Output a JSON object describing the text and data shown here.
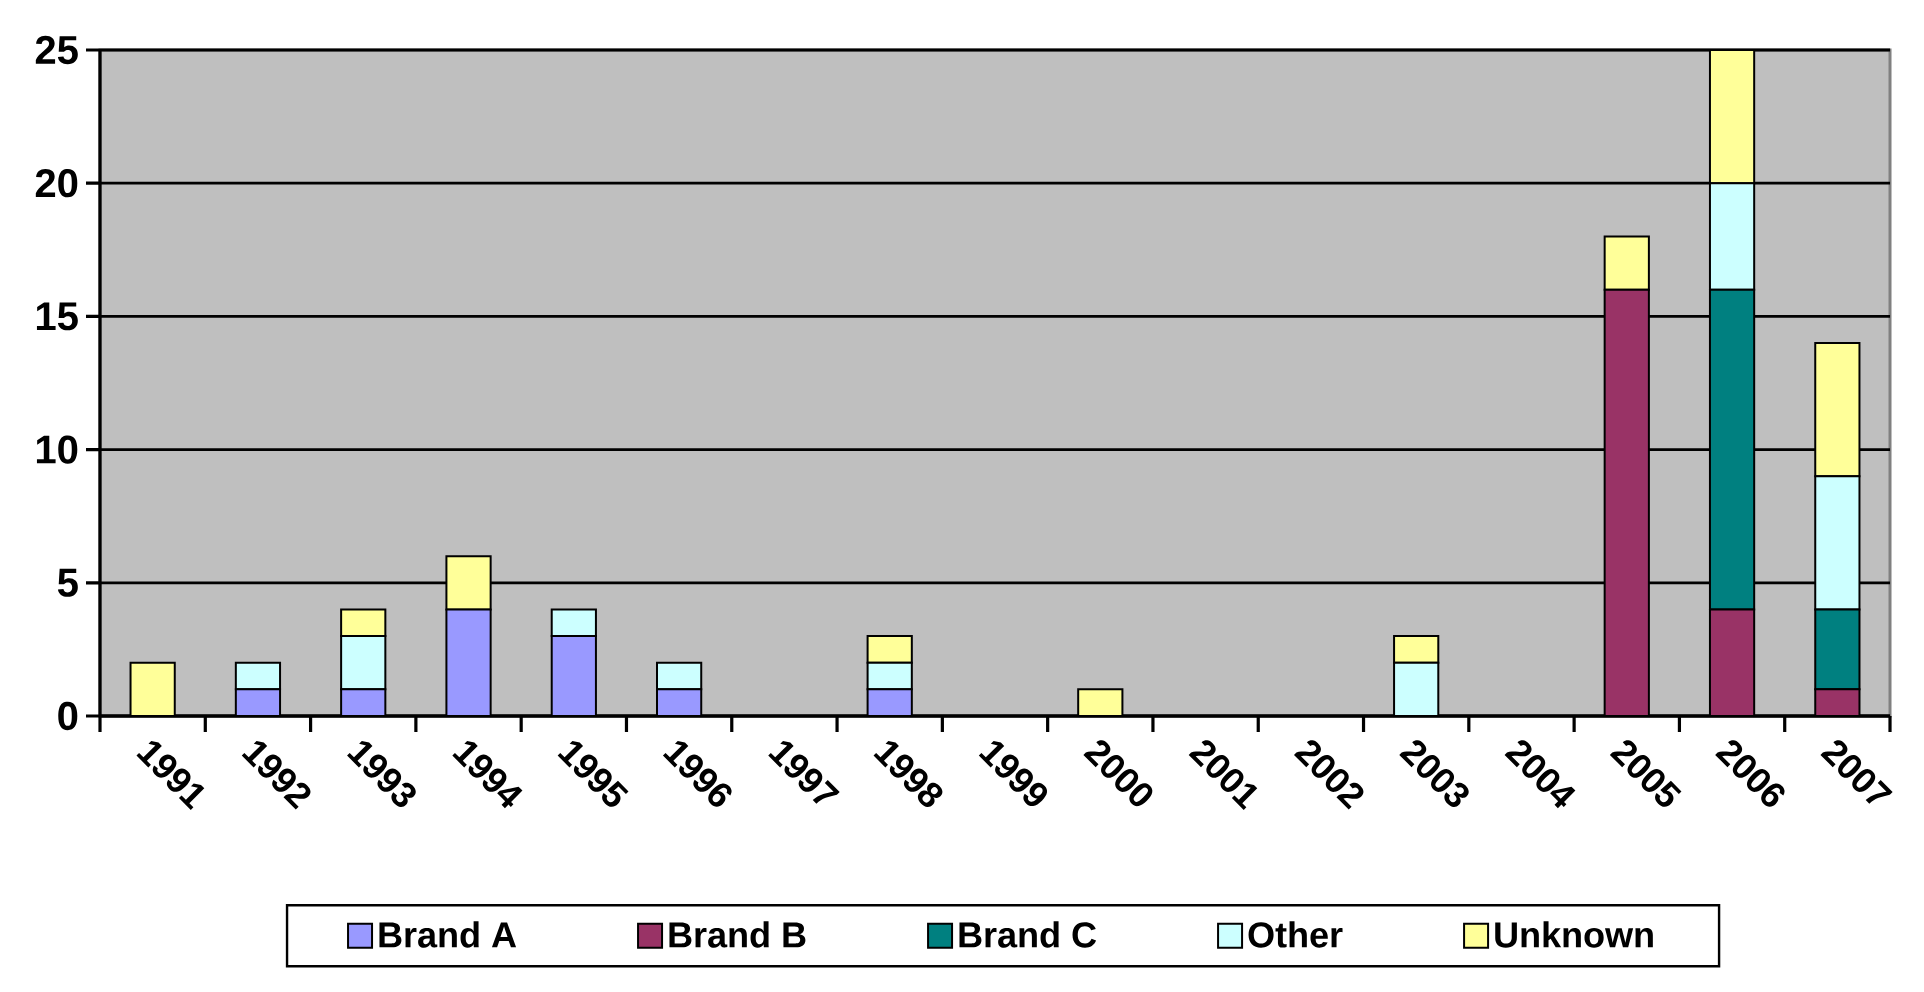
{
  "chart_data": {
    "type": "bar",
    "stacked": true,
    "categories": [
      "1991",
      "1992",
      "1993",
      "1994",
      "1995",
      "1996",
      "1997",
      "1998",
      "1999",
      "2000",
      "2001",
      "2002",
      "2003",
      "2004",
      "2005",
      "2006",
      "2007"
    ],
    "series": [
      {
        "name": "Brand A",
        "color": "#9999ff",
        "values": [
          0,
          1,
          1,
          4,
          3,
          1,
          0,
          1,
          0,
          0,
          0,
          0,
          0,
          0,
          0,
          0,
          0
        ]
      },
      {
        "name": "Brand B",
        "color": "#993366",
        "values": [
          0,
          0,
          0,
          0,
          0,
          0,
          0,
          0,
          0,
          0,
          0,
          0,
          0,
          0,
          16,
          4,
          1
        ]
      },
      {
        "name": "Brand C",
        "color": "#008080",
        "values": [
          0,
          0,
          0,
          0,
          0,
          0,
          0,
          0,
          0,
          0,
          0,
          0,
          0,
          0,
          0,
          12,
          3
        ]
      },
      {
        "name": "Other",
        "color": "#ccffff",
        "values": [
          0,
          1,
          2,
          0,
          1,
          1,
          0,
          1,
          0,
          0,
          0,
          0,
          2,
          0,
          0,
          4,
          5
        ]
      },
      {
        "name": "Unknown",
        "color": "#ffff99",
        "values": [
          2,
          0,
          1,
          2,
          0,
          0,
          0,
          1,
          0,
          1,
          0,
          0,
          1,
          0,
          2,
          5,
          5
        ]
      }
    ],
    "ylim": [
      0,
      25
    ],
    "yticks": [
      0,
      5,
      10,
      15,
      20,
      25
    ],
    "grid": "y",
    "legend": "bottom"
  }
}
